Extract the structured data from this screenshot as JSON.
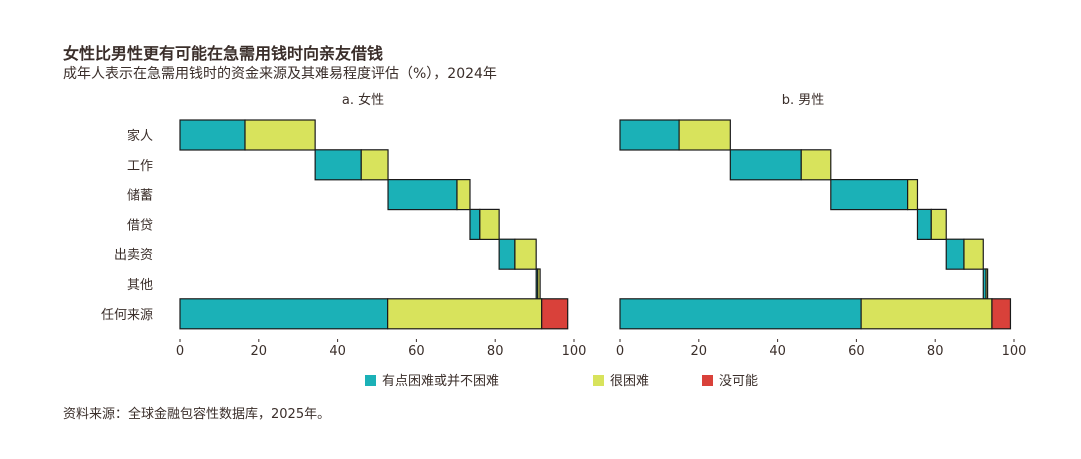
{
  "title": "女性比男性更有可能在急需用钱时向亲友借钱",
  "subtitle": "成年人表示在急需用钱时的资金来源及其难易程度评估（%），2024年",
  "source": "资料来源：全球金融包容性数据库，2025年。",
  "colors": {
    "easy": "#1bb1b7",
    "hard": "#d8e35c",
    "impossible": "#d9413a",
    "outline": "#1a1a1a"
  },
  "chart_data": {
    "type": "bar",
    "subtype": "waterfall-stacked-horizontal",
    "categories": [
      "家人",
      "工作",
      "储蓄",
      "借贷",
      "出卖资",
      "其他",
      "任何来源"
    ],
    "legend": [
      "有点困难或并不困难",
      "很困难",
      "没可能"
    ],
    "xlim": [
      0,
      100
    ],
    "xticks": [
      0,
      20,
      40,
      60,
      80,
      100
    ],
    "panels": [
      {
        "label": "a. 女性",
        "rows": [
          {
            "category": "家人",
            "start": 0,
            "segments": [
              16.5,
              17.8,
              0
            ]
          },
          {
            "category": "工作",
            "start": 34.3,
            "segments": [
              11.7,
              6.8,
              0
            ]
          },
          {
            "category": "储蓄",
            "start": 52.8,
            "segments": [
              17.5,
              3.3,
              0
            ]
          },
          {
            "category": "借贷",
            "start": 73.6,
            "segments": [
              2.5,
              4.9,
              0
            ]
          },
          {
            "category": "出卖资",
            "start": 81.0,
            "segments": [
              4.0,
              5.4,
              0
            ]
          },
          {
            "category": "其他",
            "start": 90.4,
            "segments": [
              0.4,
              0.6,
              0
            ]
          },
          {
            "category": "任何来源",
            "start": 0,
            "segments": [
              52.7,
              39.1,
              6.6
            ]
          }
        ]
      },
      {
        "label": "b. 男性",
        "rows": [
          {
            "category": "家人",
            "start": 0,
            "segments": [
              15.0,
              13.0,
              0
            ]
          },
          {
            "category": "工作",
            "start": 28.0,
            "segments": [
              18.0,
              7.5,
              0
            ]
          },
          {
            "category": "储蓄",
            "start": 53.5,
            "segments": [
              19.5,
              2.5,
              0
            ]
          },
          {
            "category": "借贷",
            "start": 75.5,
            "segments": [
              3.5,
              3.8,
              0
            ]
          },
          {
            "category": "出卖资",
            "start": 82.8,
            "segments": [
              4.5,
              4.9,
              0
            ]
          },
          {
            "category": "其他",
            "start": 92.2,
            "segments": [
              0.7,
              0.4,
              0
            ]
          },
          {
            "category": "任何来源",
            "start": 0,
            "segments": [
              61.2,
              33.2,
              4.7
            ]
          }
        ]
      }
    ]
  }
}
